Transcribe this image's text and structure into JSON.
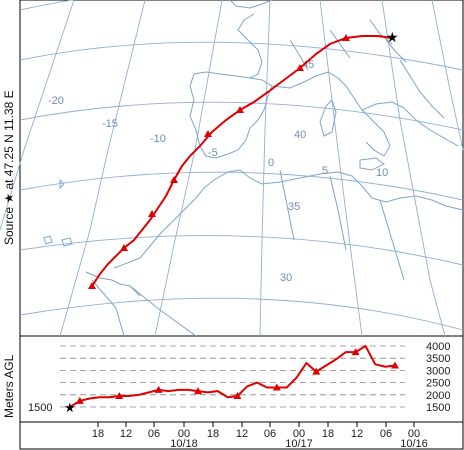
{
  "side_labels": {
    "top": "Source ★ at 47.25 N 11.38 E",
    "bottom": "Meters AGL"
  },
  "map": {
    "longitude_labels": [
      "-20",
      "-15",
      "-10",
      "-5",
      "0",
      "5",
      "10"
    ],
    "latitude_labels": [
      "45",
      "40",
      "35",
      "30"
    ],
    "colors": {
      "trajectory": "#e00000",
      "grid": "#8fb0d8",
      "coast": "#7ea4cf",
      "source": "#000000"
    }
  },
  "chart_data": {
    "type": "line",
    "ylabel": "Meters AGL",
    "y_ticks": [
      1500,
      2000,
      2500,
      3000,
      3500,
      4000
    ],
    "x_tick_labels": [
      "18",
      "12",
      "06",
      "00",
      "18",
      "12",
      "06",
      "00",
      "18",
      "12",
      "06",
      "00"
    ],
    "date_labels": [
      "10/18",
      "10/17",
      "10/16"
    ],
    "series": [
      {
        "points_hours_before_start": [
          [
            0,
            3200
          ],
          [
            3,
            3150
          ],
          [
            6,
            3250
          ],
          [
            9,
            4000
          ],
          [
            12,
            3750
          ],
          [
            15,
            3750
          ],
          [
            18,
            3450
          ],
          [
            21,
            3200
          ],
          [
            24,
            2950
          ],
          [
            27,
            3300
          ],
          [
            30,
            2700
          ],
          [
            33,
            2300
          ],
          [
            36,
            2300
          ],
          [
            39,
            2300
          ],
          [
            42,
            2500
          ],
          [
            45,
            2350
          ],
          [
            48,
            1950
          ],
          [
            51,
            1900
          ],
          [
            54,
            2150
          ],
          [
            57,
            2100
          ],
          [
            60,
            2150
          ],
          [
            63,
            2200
          ],
          [
            66,
            2200
          ],
          [
            69,
            2150
          ],
          [
            72,
            2200
          ],
          [
            75,
            2100
          ],
          [
            78,
            2000
          ],
          [
            81,
            1950
          ],
          [
            84,
            1950
          ],
          [
            87,
            1900
          ],
          [
            90,
            1900
          ],
          [
            93,
            1850
          ],
          [
            96,
            1750
          ],
          [
            99,
            1500
          ]
        ]
      }
    ],
    "source_height": 1500
  }
}
